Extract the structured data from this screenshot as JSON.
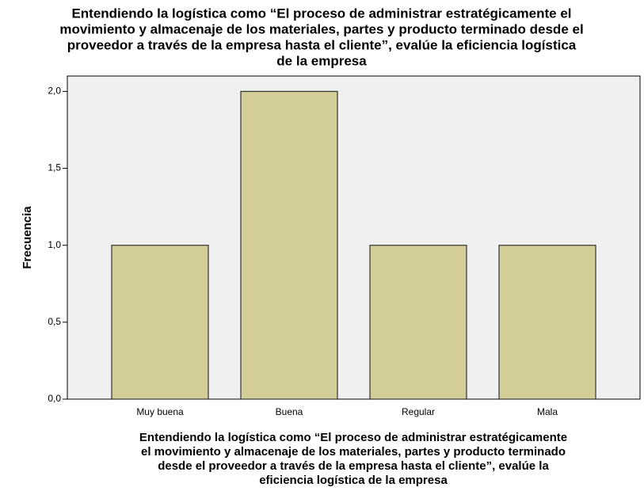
{
  "chart_data": {
    "type": "bar",
    "title": [
      "Entendiendo la logística como “El proceso de administrar estratégicamente el",
      "movimiento y almacenaje de los materiales, partes y producto terminado desde el",
      "proveedor a través de la empresa hasta el cliente”, evalúe la eficiencia  logística",
      "de  la empresa"
    ],
    "xlabel": [
      "Entendiendo la logística como “El proceso de administrar estratégicamente",
      "el movimiento y almacenaje de los materiales, partes y producto terminado",
      "desde el proveedor a través de la empresa hasta el cliente”, evalúe la",
      "eficiencia  logística de  la empresa"
    ],
    "ylabel": "Frecuencia",
    "categories": [
      "Muy buena",
      "Buena",
      "Regular",
      "Mala"
    ],
    "values": [
      1,
      2,
      1,
      1
    ],
    "color": "#d3ce97",
    "ylim": [
      0,
      2.1
    ],
    "yticks": [
      {
        "value": 0,
        "label": "0,0"
      },
      {
        "value": 0.5,
        "label": "0,5"
      },
      {
        "value": 1,
        "label": "1,0"
      },
      {
        "value": 1.5,
        "label": "1,5"
      },
      {
        "value": 2,
        "label": "2,0"
      }
    ]
  }
}
